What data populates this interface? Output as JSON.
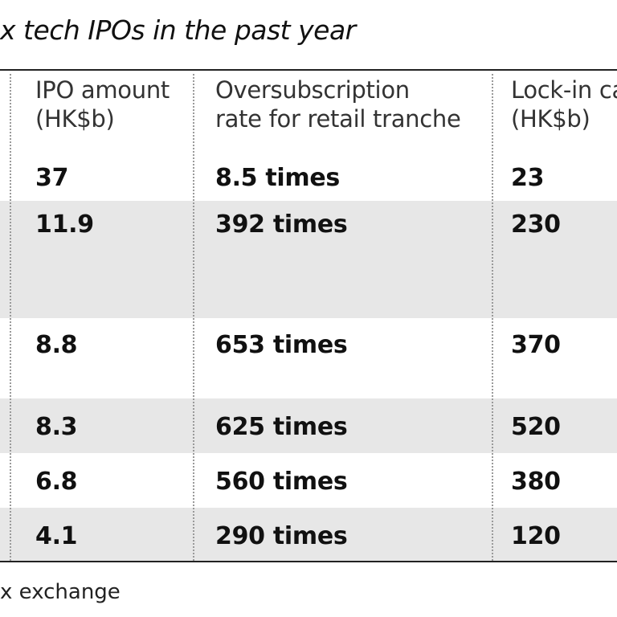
{
  "chart_data": {
    "type": "table",
    "title": "x tech IPOs in the past year",
    "columns": [
      {
        "key": "ipo_amount",
        "label_line1": "IPO amount",
        "label_line2": "(HK$b)"
      },
      {
        "key": "oversubscription",
        "label_line1": "Oversubscription",
        "label_line2": "rate for retail tranche"
      },
      {
        "key": "lock_in",
        "label_line1": "Lock-in ca",
        "label_line2": "(HK$b)"
      }
    ],
    "rows": [
      {
        "ipo_amount": "37",
        "oversubscription": "8.5 times",
        "lock_in": "23",
        "shaded": false
      },
      {
        "ipo_amount": "11.9",
        "oversubscription": "392 times",
        "lock_in": "230",
        "shaded": true
      },
      {
        "ipo_amount": "8.8",
        "oversubscription": "653 times",
        "lock_in": "370",
        "shaded": false
      },
      {
        "ipo_amount": "8.3",
        "oversubscription": "625 times",
        "lock_in": "520",
        "shaded": true
      },
      {
        "ipo_amount": "6.8",
        "oversubscription": "560 times",
        "lock_in": "380",
        "shaded": false
      },
      {
        "ipo_amount": "4.1",
        "oversubscription": "290 times",
        "lock_in": "120",
        "shaded": true
      }
    ],
    "source": "x exchange"
  },
  "colors": {
    "shade": "#e7e7e7",
    "text": "#111111",
    "rule": "#222222",
    "divider": "#9a9a9a"
  }
}
